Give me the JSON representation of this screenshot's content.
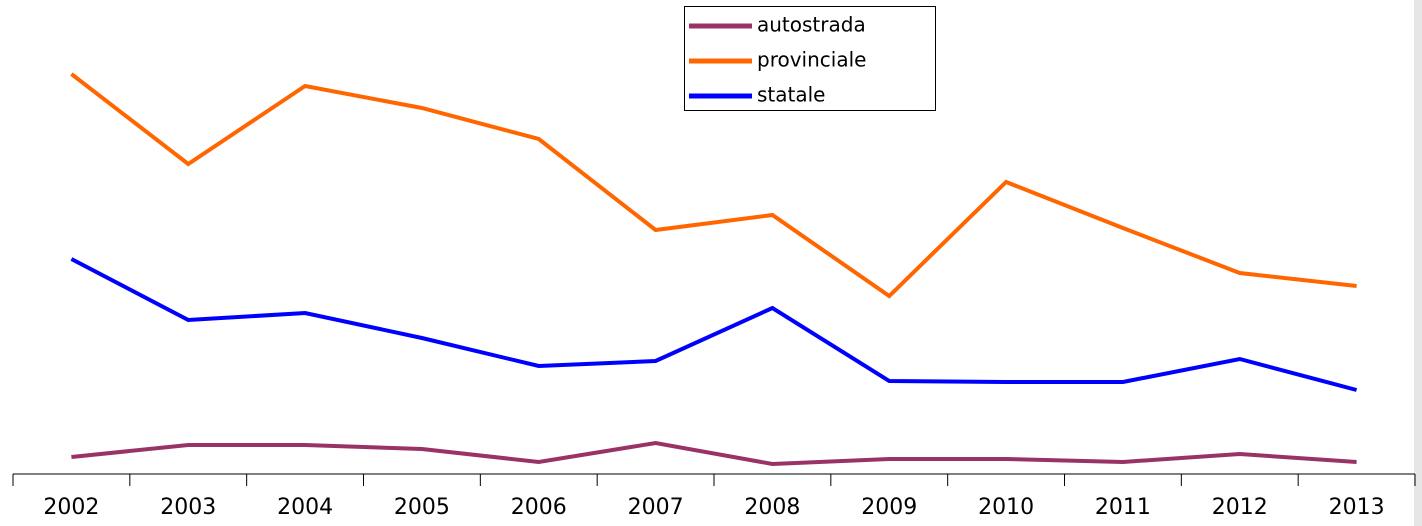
{
  "chart_data": {
    "type": "line",
    "categories": [
      "2002",
      "2003",
      "2004",
      "2005",
      "2006",
      "2007",
      "2008",
      "2009",
      "2010",
      "2011",
      "2012",
      "2013"
    ],
    "series": [
      {
        "name": "autostrada",
        "color": "#993366",
        "values": [
          17,
          29,
          29,
          25,
          12,
          31,
          10,
          15,
          15,
          12,
          20,
          12
        ]
      },
      {
        "name": "provinciale",
        "color": "#ff6600",
        "values": [
          400,
          310,
          388,
          366,
          335,
          244,
          259,
          178,
          292,
          246,
          201,
          188
        ]
      },
      {
        "name": "statale",
        "color": "#0000ff",
        "values": [
          215,
          154,
          161,
          136,
          108,
          113,
          166,
          93,
          92,
          92,
          115,
          84
        ]
      }
    ],
    "ylim": [
      0,
      474
    ],
    "grid": false,
    "legend": "top"
  }
}
